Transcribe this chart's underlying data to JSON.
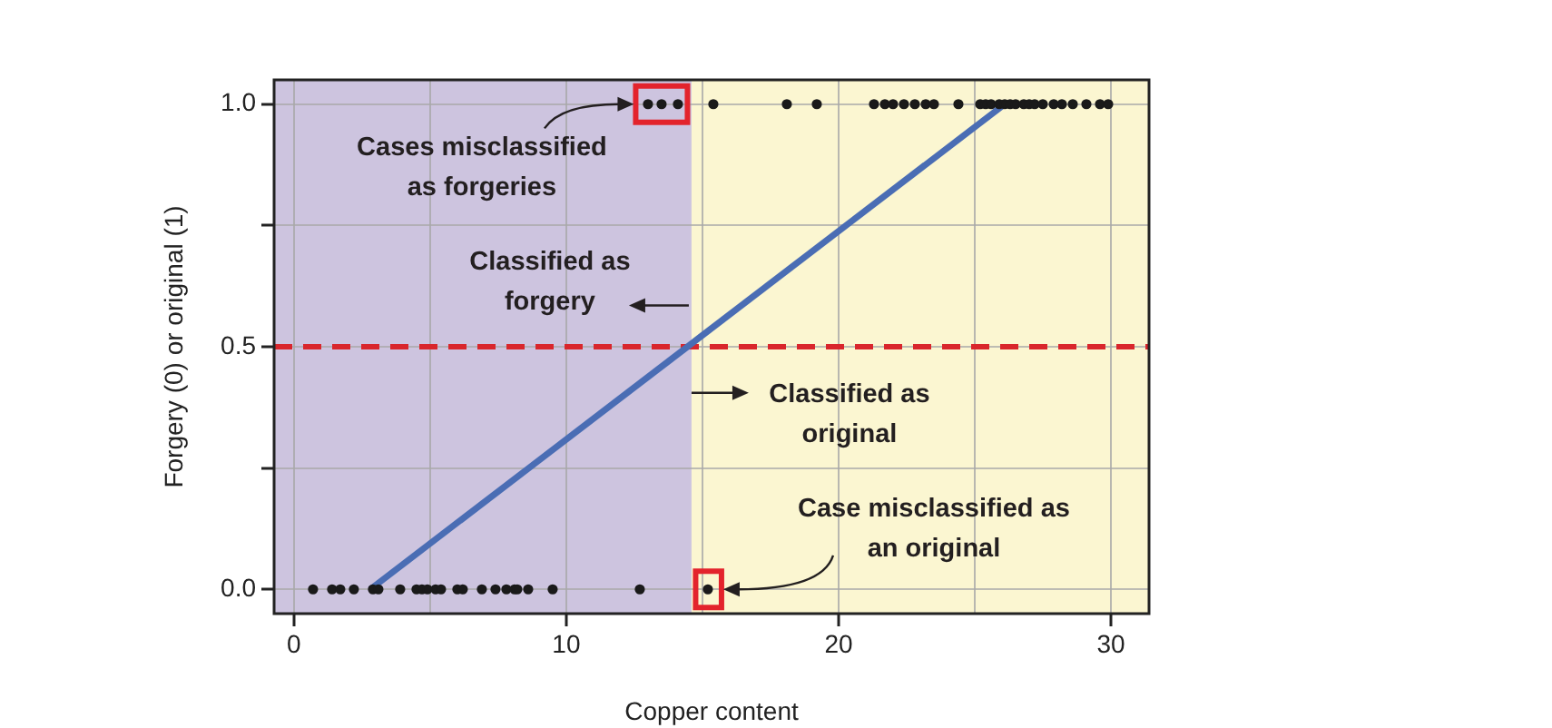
{
  "chart_data": {
    "type": "scatter",
    "xlabel": "Copper content",
    "ylabel": "Forgery (0) or original (1)",
    "xlim": [
      -0.73,
      31.4
    ],
    "ylim": [
      -0.05,
      1.05
    ],
    "xticks": [
      0,
      {
        "value": 5,
        "label": null
      },
      10,
      {
        "value": 15,
        "label": null
      },
      20,
      {
        "value": 25,
        "label": null
      },
      30
    ],
    "yticks": [
      {
        "value": 0,
        "label": "0.0"
      },
      {
        "value": 0.25,
        "label": null
      },
      {
        "value": 0.5,
        "label": "0.5"
      },
      {
        "value": 0.75,
        "label": null
      },
      {
        "value": 1,
        "label": "1.0"
      }
    ],
    "grid": true,
    "legend": false,
    "marker": "circle",
    "bands": [
      {
        "axis": "x",
        "from": -0.73,
        "to": 14.6,
        "color": "#cdc4df"
      },
      {
        "axis": "x",
        "from": 14.6,
        "to": 31.4,
        "color": "#fbf6d1"
      }
    ],
    "ref_lines": [
      {
        "axis": "y",
        "value": 0.5,
        "color": "#d9262c",
        "line_style": "dashed"
      }
    ],
    "series": [
      {
        "type": "scatter",
        "color": "#1a1a1a",
        "x": [
          13.0,
          13.5,
          14.1,
          15.4,
          18.1,
          19.2,
          21.3,
          21.7,
          22.0,
          22.4,
          22.8,
          23.2,
          23.5,
          24.4,
          25.2,
          25.4,
          25.6,
          25.9,
          26.1,
          26.3,
          26.5,
          26.8,
          27.0,
          27.2,
          27.5,
          27.9,
          28.2,
          28.6,
          29.1,
          29.6,
          29.9,
          0.7,
          1.4,
          1.7,
          2.2,
          2.9,
          3.1,
          3.9,
          4.5,
          4.7,
          4.9,
          5.2,
          5.4,
          6.0,
          6.2,
          6.9,
          7.4,
          7.8,
          8.1,
          8.2,
          8.6,
          9.5,
          12.7,
          15.2
        ],
        "values": [
          1,
          1,
          1,
          1,
          1,
          1,
          1,
          1,
          1,
          1,
          1,
          1,
          1,
          1,
          1,
          1,
          1,
          1,
          1,
          1,
          1,
          1,
          1,
          1,
          1,
          1,
          1,
          1,
          1,
          1,
          1,
          0,
          0,
          0,
          0,
          0,
          0,
          0,
          0,
          0,
          0,
          0,
          0,
          0,
          0,
          0,
          0,
          0,
          0,
          0,
          0,
          0,
          0,
          0
        ]
      },
      {
        "type": "line",
        "color": "#4a6db4",
        "line_style": "solid",
        "marker": "none",
        "x": [
          2.8,
          26.1
        ],
        "values": [
          0,
          1
        ]
      }
    ],
    "annotations": [
      "Cases misclassified as forgeries",
      "Classified as forgery",
      "Classified as original",
      "Case misclassified as an original"
    ]
  }
}
